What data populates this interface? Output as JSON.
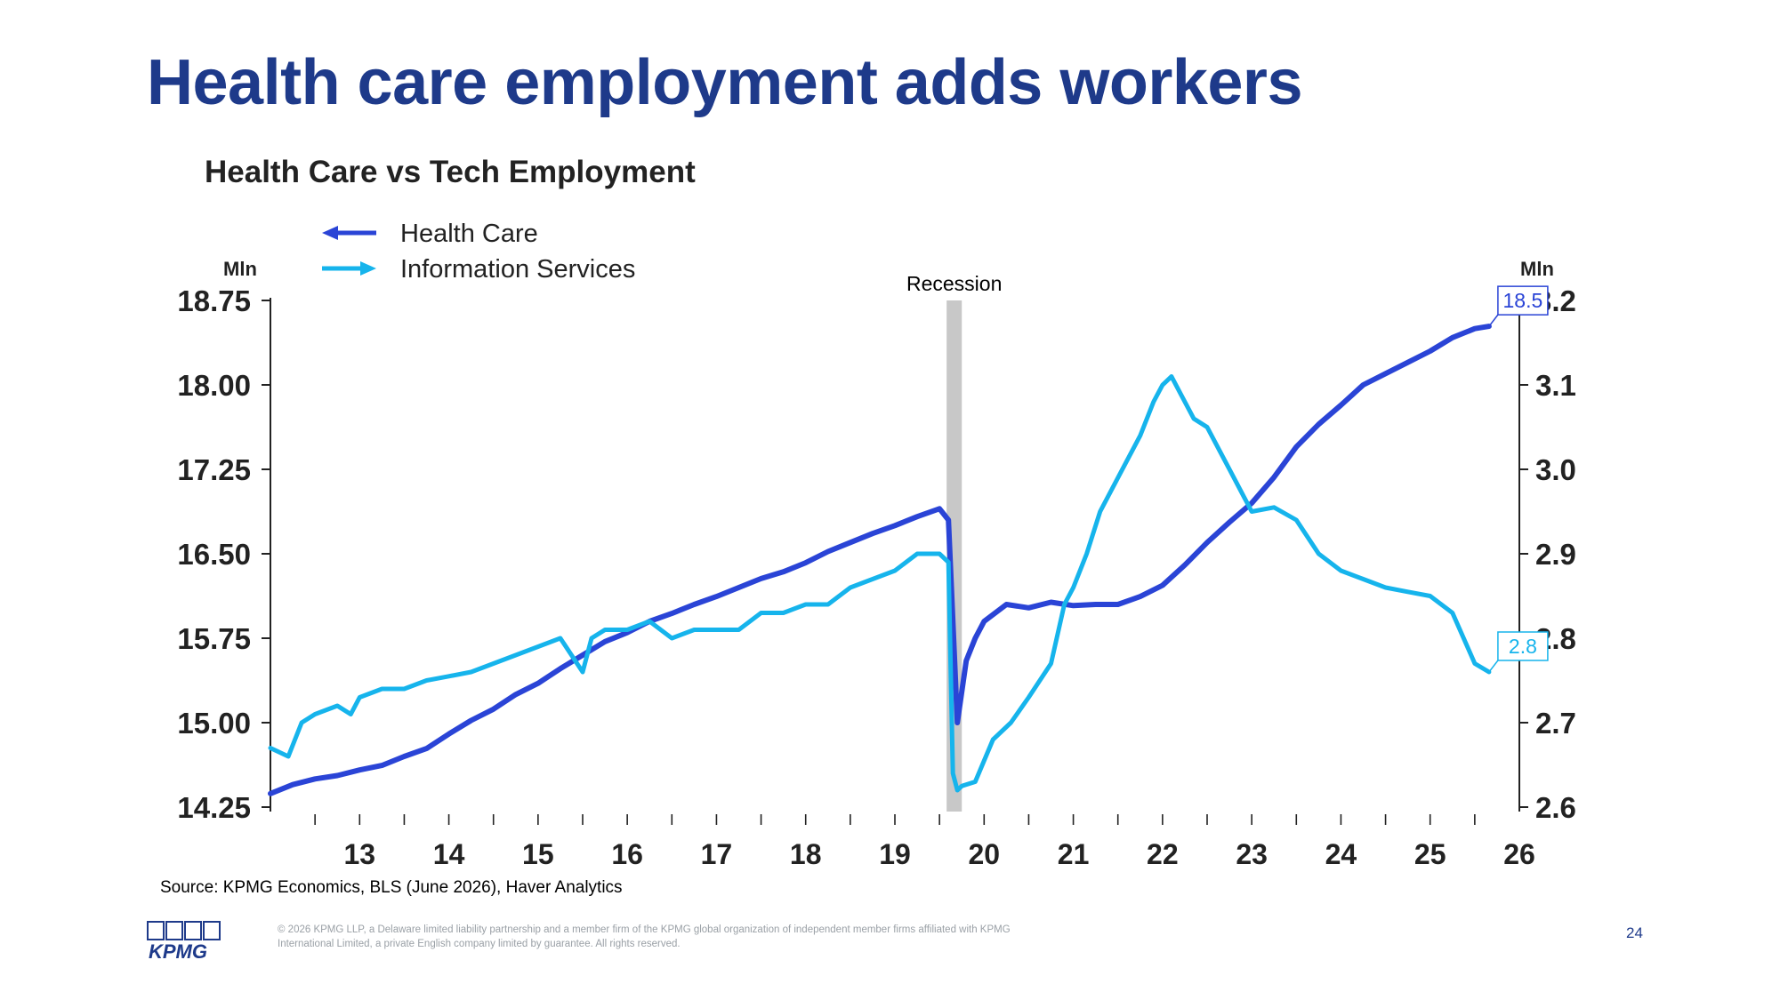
{
  "slide": {
    "title": "Health care employment adds workers",
    "source": "Source: KPMG Economics, BLS (June 2026), Haver Analytics",
    "copyright": "© 2026 KPMG LLP, a Delaware limited liability partnership and a member firm of the KPMG global organization of independent member firms affiliated with KPMG International Limited, a private English company limited by guarantee. All rights reserved.",
    "page_number": "24",
    "logo_text": "KPMG"
  },
  "colors": {
    "title": "#1e3a8a",
    "health_care": "#2a44d6",
    "information_services": "#16b4ec",
    "recession": "#c8c8c8"
  },
  "chart_data": {
    "type": "line",
    "title": "Health Care vs Tech Employment",
    "left_unit": "Mln",
    "right_unit": "Mln",
    "left_ylim": [
      14.25,
      18.75
    ],
    "right_ylim": [
      2.6,
      3.2
    ],
    "left_ticks": [
      "18.75",
      "18.00",
      "17.25",
      "16.50",
      "15.75",
      "15.00",
      "14.25"
    ],
    "right_ticks": [
      "3.2",
      "3.1",
      "3.0",
      "2.9",
      "2.8",
      "2.7",
      "2.6"
    ],
    "x_range": [
      2012.5,
      2026.5
    ],
    "x_tick_labels": [
      "13",
      "14",
      "15",
      "16",
      "17",
      "18",
      "19",
      "20",
      "21",
      "22",
      "23",
      "24",
      "25",
      "26"
    ],
    "legend": {
      "placement": "top-left",
      "entries": [
        "Health Care",
        "Information Services"
      ]
    },
    "recession": {
      "label": "Recession",
      "start": 2020.08,
      "end": 2020.25
    },
    "series": [
      {
        "name": "Health Care",
        "axis": "left",
        "end_label": "18.5",
        "x": [
          2012.5,
          2012.75,
          2013.0,
          2013.25,
          2013.5,
          2013.75,
          2014.0,
          2014.25,
          2014.5,
          2014.75,
          2015.0,
          2015.25,
          2015.5,
          2015.75,
          2016.0,
          2016.25,
          2016.5,
          2016.75,
          2017.0,
          2017.25,
          2017.5,
          2017.75,
          2018.0,
          2018.25,
          2018.5,
          2018.75,
          2019.0,
          2019.25,
          2019.5,
          2019.75,
          2020.0,
          2020.1,
          2020.2,
          2020.3,
          2020.4,
          2020.5,
          2020.75,
          2021.0,
          2021.25,
          2021.5,
          2021.75,
          2022.0,
          2022.25,
          2022.5,
          2022.75,
          2023.0,
          2023.25,
          2023.5,
          2023.75,
          2024.0,
          2024.25,
          2024.5,
          2024.75,
          2025.0,
          2025.25,
          2025.5,
          2025.75,
          2026.0,
          2026.16
        ],
        "values": [
          14.37,
          14.45,
          14.5,
          14.53,
          14.58,
          14.62,
          14.7,
          14.77,
          14.9,
          15.02,
          15.12,
          15.25,
          15.35,
          15.48,
          15.6,
          15.72,
          15.8,
          15.9,
          15.97,
          16.05,
          16.12,
          16.2,
          16.28,
          16.34,
          16.42,
          16.52,
          16.6,
          16.68,
          16.75,
          16.83,
          16.9,
          16.8,
          15.0,
          15.55,
          15.75,
          15.9,
          16.05,
          16.02,
          16.07,
          16.04,
          16.05,
          16.05,
          16.12,
          16.22,
          16.4,
          16.6,
          16.78,
          16.95,
          17.18,
          17.45,
          17.65,
          17.82,
          18.0,
          18.1,
          18.2,
          18.3,
          18.42,
          18.5,
          18.52
        ]
      },
      {
        "name": "Information Services",
        "axis": "right",
        "end_label": "2.8",
        "x": [
          2012.5,
          2012.7,
          2012.85,
          2013.0,
          2013.25,
          2013.4,
          2013.5,
          2013.75,
          2014.0,
          2014.25,
          2014.5,
          2014.75,
          2015.0,
          2015.25,
          2015.5,
          2015.75,
          2016.0,
          2016.05,
          2016.1,
          2016.25,
          2016.5,
          2016.75,
          2017.0,
          2017.25,
          2017.5,
          2017.75,
          2018.0,
          2018.25,
          2018.5,
          2018.75,
          2019.0,
          2019.25,
          2019.5,
          2019.75,
          2020.0,
          2020.1,
          2020.15,
          2020.2,
          2020.25,
          2020.4,
          2020.6,
          2020.8,
          2021.0,
          2021.25,
          2021.4,
          2021.5,
          2021.65,
          2021.8,
          2022.0,
          2022.25,
          2022.4,
          2022.5,
          2022.6,
          2022.7,
          2022.85,
          2023.0,
          2023.25,
          2023.5,
          2023.75,
          2024.0,
          2024.25,
          2024.5,
          2024.75,
          2025.0,
          2025.25,
          2025.5,
          2025.75,
          2026.0,
          2026.16
        ],
        "values": [
          2.67,
          2.66,
          2.7,
          2.71,
          2.72,
          2.71,
          2.73,
          2.74,
          2.74,
          2.75,
          2.755,
          2.76,
          2.77,
          2.78,
          2.79,
          2.8,
          2.76,
          2.78,
          2.8,
          2.81,
          2.81,
          2.82,
          2.8,
          2.81,
          2.81,
          2.81,
          2.83,
          2.83,
          2.84,
          2.84,
          2.86,
          2.87,
          2.88,
          2.9,
          2.9,
          2.89,
          2.64,
          2.62,
          2.625,
          2.63,
          2.68,
          2.7,
          2.73,
          2.77,
          2.84,
          2.86,
          2.9,
          2.95,
          2.99,
          3.04,
          3.08,
          3.1,
          3.11,
          3.09,
          3.06,
          3.05,
          3.0,
          2.95,
          2.955,
          2.94,
          2.9,
          2.88,
          2.87,
          2.86,
          2.855,
          2.85,
          2.83,
          2.77,
          2.76
        ]
      }
    ]
  }
}
